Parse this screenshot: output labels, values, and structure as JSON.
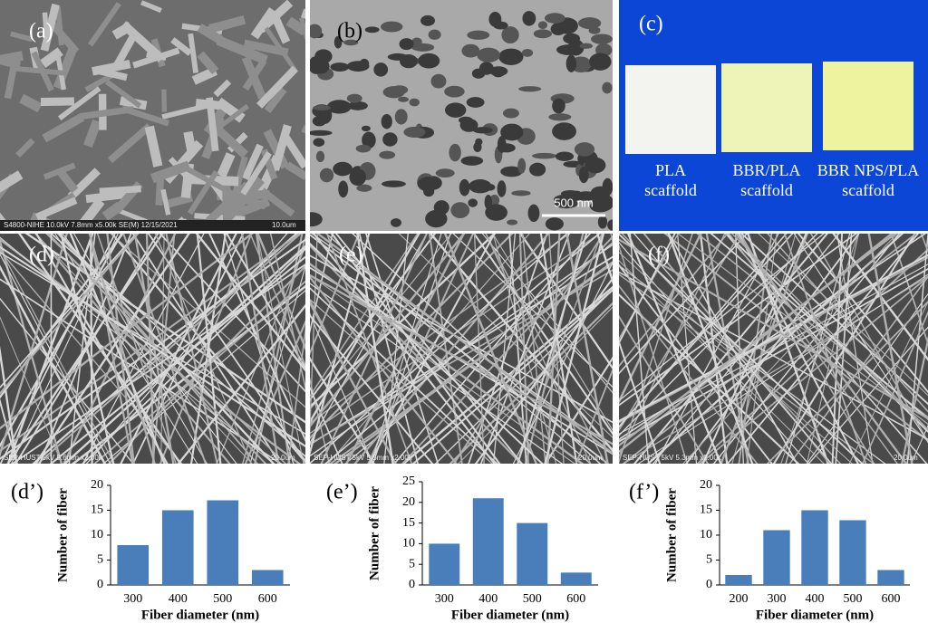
{
  "panels": {
    "a": {
      "label": "(a)",
      "info": "S4800-NIHE 10.0kV 7.8mm x5.00k SE(M) 12/15/2021",
      "scale": "10.0um"
    },
    "b": {
      "label": "(b)",
      "scale": "500 nm"
    },
    "c": {
      "label": "(c)",
      "samples": [
        [
          "PLA",
          "scaffold"
        ],
        [
          "BBR/PLA",
          "scaffold"
        ],
        [
          "BBR NPS/PLA",
          "scaffold"
        ]
      ]
    },
    "d": {
      "label": "(d)",
      "info": "SEP-HUST 5kV 5.6mm x2.00k",
      "scale": "20.0um"
    },
    "e": {
      "label": "(e)",
      "info": "SEP-HUST 5kV 5.5mm x2.00k",
      "scale": "20.0um"
    },
    "f": {
      "label": "(f)",
      "info": "SEP-HUST 5kV 5.3mm x2.00k",
      "scale": "20.0um"
    }
  },
  "chart_data": [
    {
      "type": "bar",
      "title": "(d’)",
      "x_label": "Fiber diameter (nm)",
      "y_label": "Number of fiber",
      "color": "#4a7ebb",
      "categories": [
        "300",
        "400",
        "500",
        "600"
      ],
      "values": [
        8,
        15,
        17,
        3
      ],
      "ylim": [
        0,
        20
      ],
      "yticks": [
        0,
        5,
        10,
        15,
        20
      ]
    },
    {
      "type": "bar",
      "title": "(e’)",
      "x_label": "Fiber diameter (nm)",
      "y_label": "Number of fiber",
      "color": "#4a7ebb",
      "categories": [
        "300",
        "400",
        "500",
        "600"
      ],
      "values": [
        10,
        21,
        15,
        3
      ],
      "ylim": [
        0,
        25
      ],
      "yticks": [
        0,
        5,
        10,
        15,
        20,
        25
      ]
    },
    {
      "type": "bar",
      "title": "(f’)",
      "x_label": "Fiber diameter (nm)",
      "y_label": "Number of fiber",
      "color": "#4a7ebb",
      "categories": [
        "200",
        "300",
        "400",
        "500",
        "600"
      ],
      "values": [
        2,
        11,
        15,
        13,
        3
      ],
      "ylim": [
        0,
        20
      ],
      "yticks": [
        0,
        5,
        10,
        15,
        20
      ]
    }
  ]
}
